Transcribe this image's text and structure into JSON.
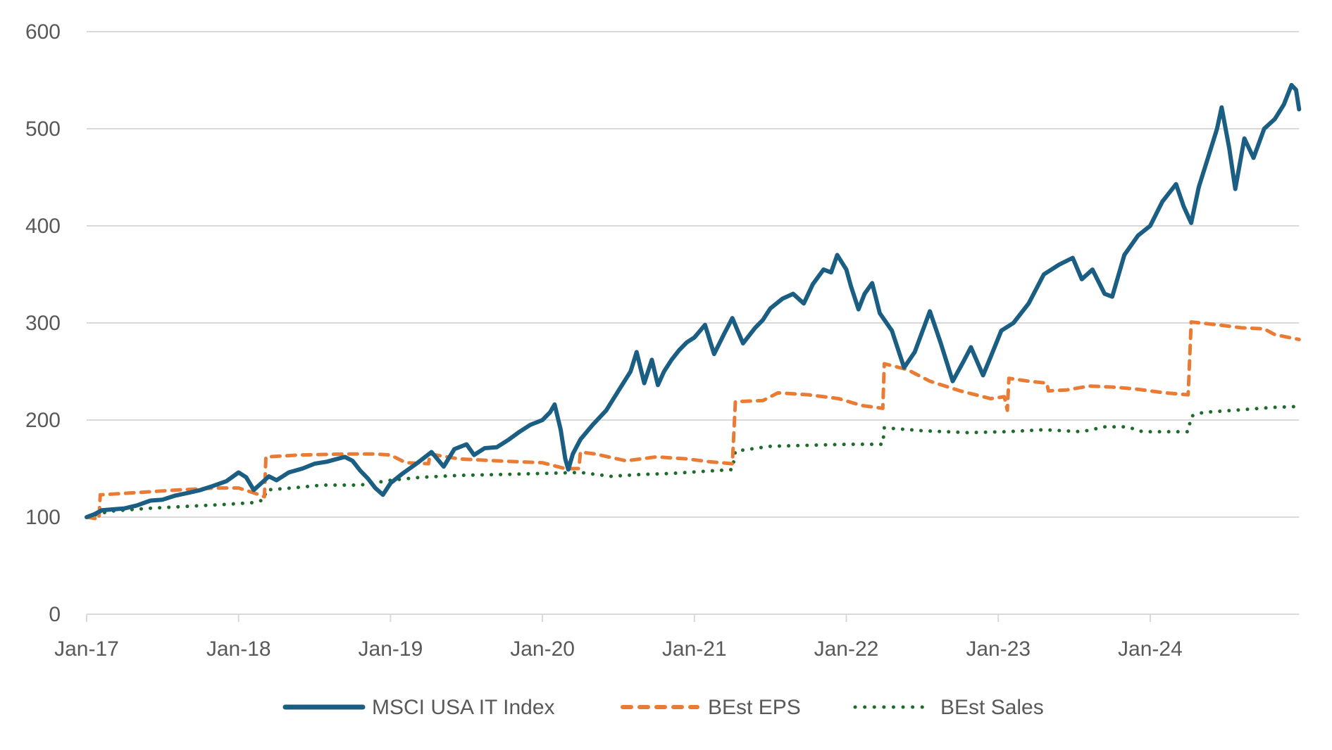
{
  "chart_data": {
    "type": "line",
    "title": "",
    "xlabel": "",
    "ylabel": "",
    "ylim": [
      0,
      600
    ],
    "yticks": [
      0,
      100,
      200,
      300,
      400,
      500,
      600
    ],
    "xticks": [
      {
        "label": "Jan-17",
        "t": 0
      },
      {
        "label": "Jan-18",
        "t": 1
      },
      {
        "label": "Jan-19",
        "t": 2
      },
      {
        "label": "Jan-20",
        "t": 3
      },
      {
        "label": "Jan-21",
        "t": 4
      },
      {
        "label": "Jan-22",
        "t": 5
      },
      {
        "label": "Jan-23",
        "t": 6
      },
      {
        "label": "Jan-24",
        "t": 7
      }
    ],
    "x_units": "years since Jan-2017",
    "xlim": [
      0,
      7.98
    ],
    "grid": "horizontal",
    "legend_position": "bottom",
    "series": [
      {
        "name": "MSCI USA IT Index",
        "color": "#1b5e83",
        "style": "solid",
        "points": [
          [
            0.0,
            100
          ],
          [
            0.05,
            103
          ],
          [
            0.1,
            107
          ],
          [
            0.17,
            108
          ],
          [
            0.25,
            109
          ],
          [
            0.33,
            112
          ],
          [
            0.42,
            117
          ],
          [
            0.5,
            118
          ],
          [
            0.58,
            122
          ],
          [
            0.67,
            125
          ],
          [
            0.75,
            128
          ],
          [
            0.83,
            132
          ],
          [
            0.92,
            137
          ],
          [
            1.0,
            146
          ],
          [
            1.05,
            141
          ],
          [
            1.1,
            128
          ],
          [
            1.15,
            135
          ],
          [
            1.2,
            142
          ],
          [
            1.25,
            138
          ],
          [
            1.33,
            146
          ],
          [
            1.42,
            150
          ],
          [
            1.5,
            155
          ],
          [
            1.58,
            157
          ],
          [
            1.65,
            160
          ],
          [
            1.7,
            162
          ],
          [
            1.75,
            158
          ],
          [
            1.8,
            148
          ],
          [
            1.85,
            140
          ],
          [
            1.9,
            130
          ],
          [
            1.95,
            123
          ],
          [
            2.0,
            135
          ],
          [
            2.08,
            145
          ],
          [
            2.17,
            155
          ],
          [
            2.27,
            167
          ],
          [
            2.35,
            152
          ],
          [
            2.42,
            170
          ],
          [
            2.5,
            175
          ],
          [
            2.55,
            164
          ],
          [
            2.62,
            171
          ],
          [
            2.7,
            172
          ],
          [
            2.78,
            180
          ],
          [
            2.85,
            188
          ],
          [
            2.92,
            195
          ],
          [
            3.0,
            200
          ],
          [
            3.05,
            208
          ],
          [
            3.08,
            216
          ],
          [
            3.12,
            190
          ],
          [
            3.15,
            160
          ],
          [
            3.17,
            149
          ],
          [
            3.2,
            165
          ],
          [
            3.25,
            180
          ],
          [
            3.33,
            195
          ],
          [
            3.42,
            210
          ],
          [
            3.5,
            230
          ],
          [
            3.58,
            250
          ],
          [
            3.62,
            270
          ],
          [
            3.67,
            238
          ],
          [
            3.72,
            262
          ],
          [
            3.76,
            236
          ],
          [
            3.8,
            250
          ],
          [
            3.85,
            262
          ],
          [
            3.9,
            272
          ],
          [
            3.95,
            280
          ],
          [
            4.0,
            285
          ],
          [
            4.07,
            298
          ],
          [
            4.13,
            268
          ],
          [
            4.2,
            290
          ],
          [
            4.25,
            305
          ],
          [
            4.32,
            279
          ],
          [
            4.4,
            295
          ],
          [
            4.45,
            303
          ],
          [
            4.5,
            315
          ],
          [
            4.58,
            325
          ],
          [
            4.65,
            330
          ],
          [
            4.72,
            320
          ],
          [
            4.78,
            340
          ],
          [
            4.85,
            355
          ],
          [
            4.9,
            352
          ],
          [
            4.94,
            370
          ],
          [
            5.0,
            355
          ],
          [
            5.03,
            338
          ],
          [
            5.08,
            314
          ],
          [
            5.12,
            330
          ],
          [
            5.17,
            341
          ],
          [
            5.22,
            310
          ],
          [
            5.3,
            292
          ],
          [
            5.38,
            254
          ],
          [
            5.45,
            270
          ],
          [
            5.55,
            312
          ],
          [
            5.62,
            280
          ],
          [
            5.7,
            240
          ],
          [
            5.77,
            260
          ],
          [
            5.82,
            275
          ],
          [
            5.9,
            246
          ],
          [
            5.95,
            265
          ],
          [
            6.02,
            292
          ],
          [
            6.1,
            300
          ],
          [
            6.2,
            320
          ],
          [
            6.3,
            350
          ],
          [
            6.4,
            360
          ],
          [
            6.49,
            367
          ],
          [
            6.55,
            345
          ],
          [
            6.62,
            355
          ],
          [
            6.7,
            330
          ],
          [
            6.75,
            327
          ],
          [
            6.83,
            370
          ],
          [
            6.92,
            390
          ],
          [
            7.0,
            400
          ],
          [
            7.08,
            425
          ],
          [
            7.17,
            443
          ],
          [
            7.22,
            420
          ],
          [
            7.27,
            403
          ],
          [
            7.32,
            440
          ],
          [
            7.38,
            470
          ],
          [
            7.44,
            500
          ],
          [
            7.47,
            522
          ],
          [
            7.52,
            480
          ],
          [
            7.56,
            438
          ],
          [
            7.62,
            490
          ],
          [
            7.68,
            470
          ],
          [
            7.75,
            500
          ],
          [
            7.82,
            510
          ],
          [
            7.88,
            525
          ],
          [
            7.93,
            545
          ],
          [
            7.96,
            540
          ],
          [
            7.98,
            520
          ]
        ]
      },
      {
        "name": "BEst EPS",
        "color": "#e97b35",
        "style": "dashed",
        "points": [
          [
            0.0,
            100
          ],
          [
            0.08,
            98
          ],
          [
            0.09,
            123
          ],
          [
            0.3,
            125
          ],
          [
            0.6,
            128
          ],
          [
            0.85,
            130
          ],
          [
            1.0,
            130
          ],
          [
            1.1,
            125
          ],
          [
            1.17,
            121
          ],
          [
            1.18,
            162
          ],
          [
            1.4,
            164
          ],
          [
            1.7,
            165
          ],
          [
            1.9,
            165
          ],
          [
            2.0,
            164
          ],
          [
            2.1,
            156
          ],
          [
            2.25,
            155
          ],
          [
            2.26,
            165
          ],
          [
            2.45,
            160
          ],
          [
            2.7,
            158
          ],
          [
            3.0,
            156
          ],
          [
            3.15,
            150
          ],
          [
            3.24,
            150
          ],
          [
            3.25,
            167
          ],
          [
            3.35,
            165
          ],
          [
            3.55,
            158
          ],
          [
            3.75,
            162
          ],
          [
            3.95,
            160
          ],
          [
            4.1,
            157
          ],
          [
            4.25,
            155
          ],
          [
            4.27,
            219
          ],
          [
            4.45,
            220
          ],
          [
            4.55,
            228
          ],
          [
            4.75,
            226
          ],
          [
            4.95,
            222
          ],
          [
            5.1,
            215
          ],
          [
            5.24,
            212
          ],
          [
            5.25,
            258
          ],
          [
            5.4,
            252
          ],
          [
            5.55,
            240
          ],
          [
            5.75,
            230
          ],
          [
            5.95,
            222
          ],
          [
            6.04,
            224
          ],
          [
            6.06,
            210
          ],
          [
            6.07,
            243
          ],
          [
            6.2,
            240
          ],
          [
            6.32,
            238
          ],
          [
            6.33,
            230
          ],
          [
            6.45,
            231
          ],
          [
            6.6,
            235
          ],
          [
            6.75,
            234
          ],
          [
            6.9,
            232
          ],
          [
            7.1,
            228
          ],
          [
            7.25,
            226
          ],
          [
            7.27,
            301
          ],
          [
            7.45,
            298
          ],
          [
            7.6,
            295
          ],
          [
            7.75,
            294
          ],
          [
            7.82,
            288
          ],
          [
            7.98,
            283
          ]
        ]
      },
      {
        "name": "BEst Sales",
        "color": "#1e6b2a",
        "style": "dotted",
        "points": [
          [
            0.0,
            100
          ],
          [
            0.15,
            106
          ],
          [
            0.4,
            109
          ],
          [
            0.65,
            111
          ],
          [
            0.9,
            113
          ],
          [
            1.1,
            115
          ],
          [
            1.17,
            118
          ],
          [
            1.18,
            128
          ],
          [
            1.35,
            130
          ],
          [
            1.55,
            133
          ],
          [
            1.8,
            133
          ],
          [
            2.0,
            138
          ],
          [
            2.2,
            141
          ],
          [
            2.45,
            143
          ],
          [
            2.75,
            144
          ],
          [
            3.0,
            145
          ],
          [
            3.25,
            146
          ],
          [
            3.45,
            142
          ],
          [
            3.65,
            144
          ],
          [
            3.85,
            145
          ],
          [
            4.05,
            147
          ],
          [
            4.25,
            149
          ],
          [
            4.27,
            168
          ],
          [
            4.5,
            173
          ],
          [
            4.75,
            174
          ],
          [
            5.0,
            175
          ],
          [
            5.24,
            175
          ],
          [
            5.25,
            192
          ],
          [
            5.5,
            189
          ],
          [
            5.8,
            187
          ],
          [
            6.05,
            188
          ],
          [
            6.3,
            190
          ],
          [
            6.55,
            188
          ],
          [
            6.7,
            193
          ],
          [
            6.85,
            193
          ],
          [
            6.95,
            188
          ],
          [
            7.25,
            188
          ],
          [
            7.27,
            204
          ],
          [
            7.35,
            208
          ],
          [
            7.55,
            210
          ],
          [
            7.8,
            213
          ],
          [
            7.98,
            214
          ]
        ]
      }
    ]
  }
}
